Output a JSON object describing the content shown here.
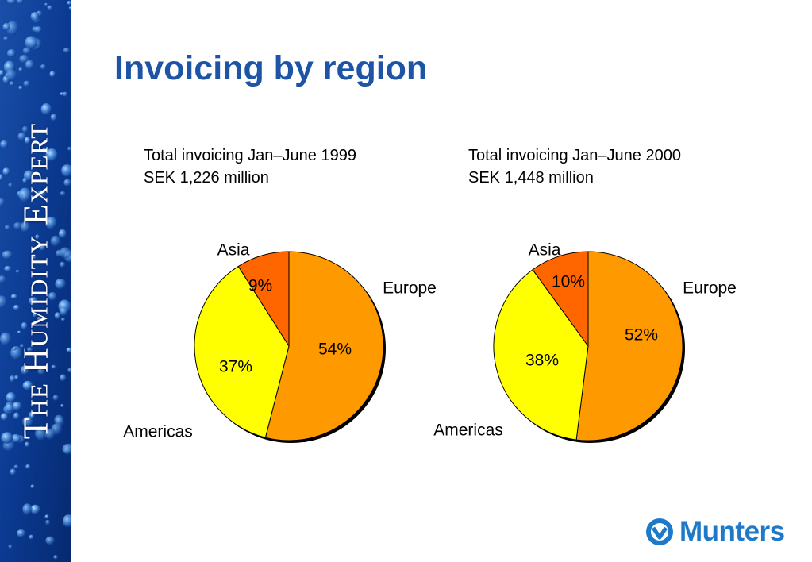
{
  "side_band": {
    "text": "The Humidity Expert"
  },
  "slide": {
    "title": "Invoicing by region"
  },
  "logo": {
    "text": "Munters"
  },
  "colors": {
    "title": "#1d54a6",
    "europe": "#ff9900",
    "americas": "#ffff00",
    "asia": "#ff6600",
    "band_dark": "#0a2a78",
    "band_light": "#3d8ae0"
  },
  "chart_data": [
    {
      "type": "pie",
      "title": "Total invoicing Jan–June 1999",
      "subtitle": "SEK 1,226 million",
      "slices": [
        {
          "label": "Europe",
          "value": 54,
          "value_label": "54%",
          "color": "#ff9900"
        },
        {
          "label": "Americas",
          "value": 37,
          "value_label": "37%",
          "color": "#ffff00"
        },
        {
          "label": "Asia",
          "value": 9,
          "value_label": "9%",
          "color": "#ff6600"
        }
      ]
    },
    {
      "type": "pie",
      "title": "Total invoicing Jan–June 2000",
      "subtitle": "SEK 1,448 million",
      "slices": [
        {
          "label": "Europe",
          "value": 52,
          "value_label": "52%",
          "color": "#ff9900"
        },
        {
          "label": "Americas",
          "value": 38,
          "value_label": "38%",
          "color": "#ffff00"
        },
        {
          "label": "Asia",
          "value": 10,
          "value_label": "10%",
          "color": "#ff6600"
        }
      ]
    }
  ]
}
